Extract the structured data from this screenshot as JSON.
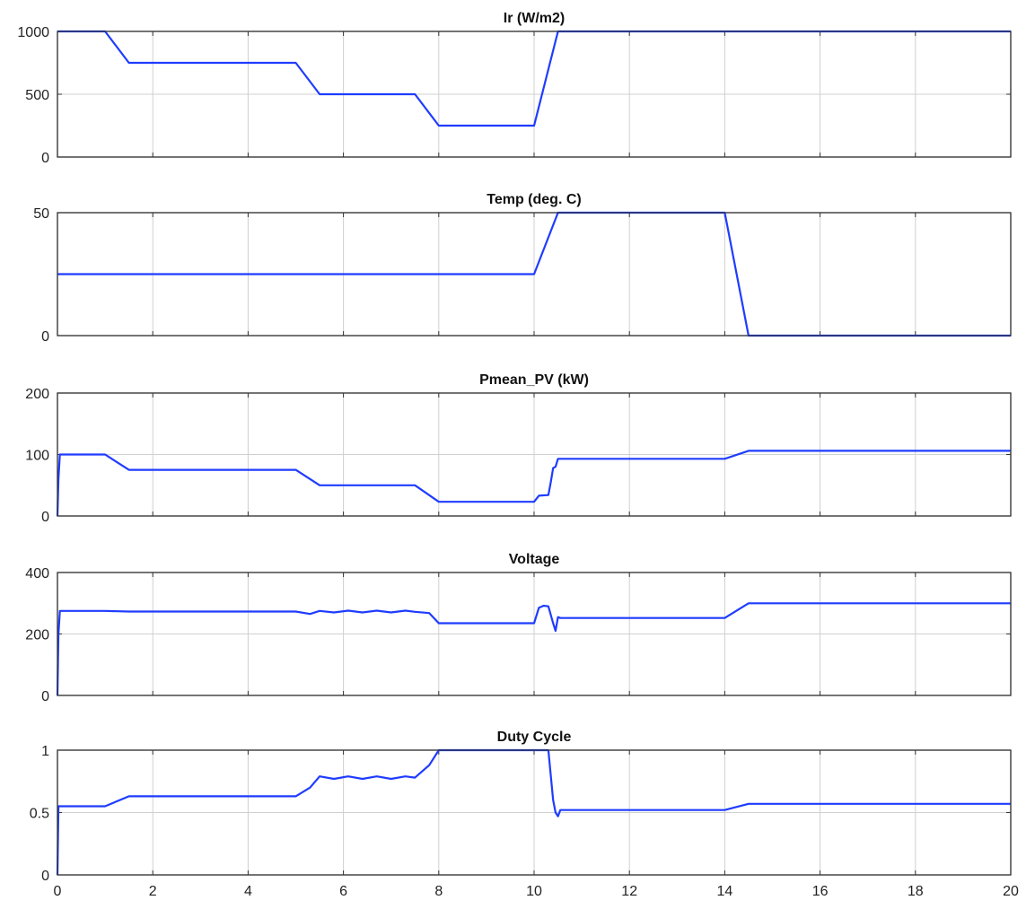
{
  "chart_data": [
    {
      "type": "line",
      "title": "Ir (W/m2)",
      "xlabel": "",
      "ylabel": "",
      "xlim": [
        0,
        20
      ],
      "ylim": [
        0,
        1000
      ],
      "yticks": [
        0,
        500,
        1000
      ],
      "xticks": [
        0,
        2,
        4,
        6,
        8,
        10,
        12,
        14,
        16,
        18,
        20
      ],
      "show_xtick_labels": false,
      "grid": true,
      "series": [
        {
          "color": "#1f3cff",
          "x": [
            0,
            1,
            1.5,
            5,
            5.5,
            7.5,
            8,
            10,
            10.5,
            20
          ],
          "y": [
            1000,
            1000,
            750,
            750,
            500,
            500,
            250,
            250,
            1000,
            1000
          ]
        }
      ]
    },
    {
      "type": "line",
      "title": "Temp (deg. C)",
      "xlabel": "",
      "ylabel": "",
      "xlim": [
        0,
        20
      ],
      "ylim": [
        0,
        50
      ],
      "yticks": [
        0,
        50
      ],
      "xticks": [
        0,
        2,
        4,
        6,
        8,
        10,
        12,
        14,
        16,
        18,
        20
      ],
      "show_xtick_labels": false,
      "grid": true,
      "series": [
        {
          "color": "#1f3cff",
          "x": [
            0,
            10,
            10.5,
            14,
            14.5,
            20
          ],
          "y": [
            25,
            25,
            50,
            50,
            0,
            0
          ]
        }
      ]
    },
    {
      "type": "line",
      "title": "Pmean_PV (kW)",
      "xlabel": "",
      "ylabel": "",
      "xlim": [
        0,
        20
      ],
      "ylim": [
        0,
        200
      ],
      "yticks": [
        0,
        100,
        200
      ],
      "xticks": [
        0,
        2,
        4,
        6,
        8,
        10,
        12,
        14,
        16,
        18,
        20
      ],
      "show_xtick_labels": false,
      "grid": true,
      "series": [
        {
          "color": "#1f3cff",
          "x": [
            0,
            0.02,
            0.05,
            1,
            1.5,
            5,
            5.5,
            7.5,
            8,
            10,
            10.1,
            10.3,
            10.35,
            10.4,
            10.45,
            10.5,
            10.55,
            14,
            14.5,
            20
          ],
          "y": [
            0,
            60,
            100,
            100,
            75,
            75,
            50,
            50,
            23,
            23,
            33,
            34,
            55,
            78,
            80,
            93,
            93,
            93,
            106,
            106
          ]
        }
      ]
    },
    {
      "type": "line",
      "title": "Voltage",
      "xlabel": "",
      "ylabel": "",
      "xlim": [
        0,
        20
      ],
      "ylim": [
        0,
        400
      ],
      "yticks": [
        0,
        200,
        400
      ],
      "xticks": [
        0,
        2,
        4,
        6,
        8,
        10,
        12,
        14,
        16,
        18,
        20
      ],
      "show_xtick_labels": false,
      "grid": true,
      "series": [
        {
          "color": "#1f3cff",
          "x": [
            0,
            0.02,
            0.05,
            1,
            1.5,
            5,
            5.3,
            5.5,
            5.8,
            6.1,
            6.4,
            6.7,
            7.0,
            7.3,
            7.5,
            7.8,
            8,
            10,
            10.1,
            10.2,
            10.3,
            10.4,
            10.45,
            10.5,
            10.55,
            14,
            14.5,
            20
          ],
          "y": [
            0,
            200,
            275,
            275,
            273,
            273,
            265,
            275,
            270,
            276,
            270,
            276,
            270,
            276,
            272,
            268,
            235,
            235,
            285,
            292,
            290,
            235,
            210,
            255,
            252,
            252,
            300,
            300
          ]
        }
      ]
    },
    {
      "type": "line",
      "title": "Duty Cycle",
      "xlabel": "",
      "ylabel": "",
      "xlim": [
        0,
        20
      ],
      "ylim": [
        0,
        1
      ],
      "yticks": [
        0,
        0.5,
        1
      ],
      "xticks": [
        0,
        2,
        4,
        6,
        8,
        10,
        12,
        14,
        16,
        18,
        20
      ],
      "show_xtick_labels": true,
      "grid": true,
      "series": [
        {
          "color": "#1f3cff",
          "x": [
            0,
            0.02,
            0.05,
            1,
            1.5,
            5,
            5.3,
            5.5,
            5.8,
            6.1,
            6.4,
            6.7,
            7.0,
            7.3,
            7.5,
            7.8,
            8,
            10,
            10.3,
            10.4,
            10.45,
            10.5,
            10.55,
            14,
            14.5,
            20
          ],
          "y": [
            0,
            0.55,
            0.55,
            0.55,
            0.63,
            0.63,
            0.7,
            0.79,
            0.77,
            0.79,
            0.77,
            0.79,
            0.77,
            0.79,
            0.78,
            0.88,
            1.0,
            1.0,
            1.0,
            0.6,
            0.5,
            0.47,
            0.52,
            0.52,
            0.57,
            0.57
          ]
        }
      ]
    }
  ]
}
